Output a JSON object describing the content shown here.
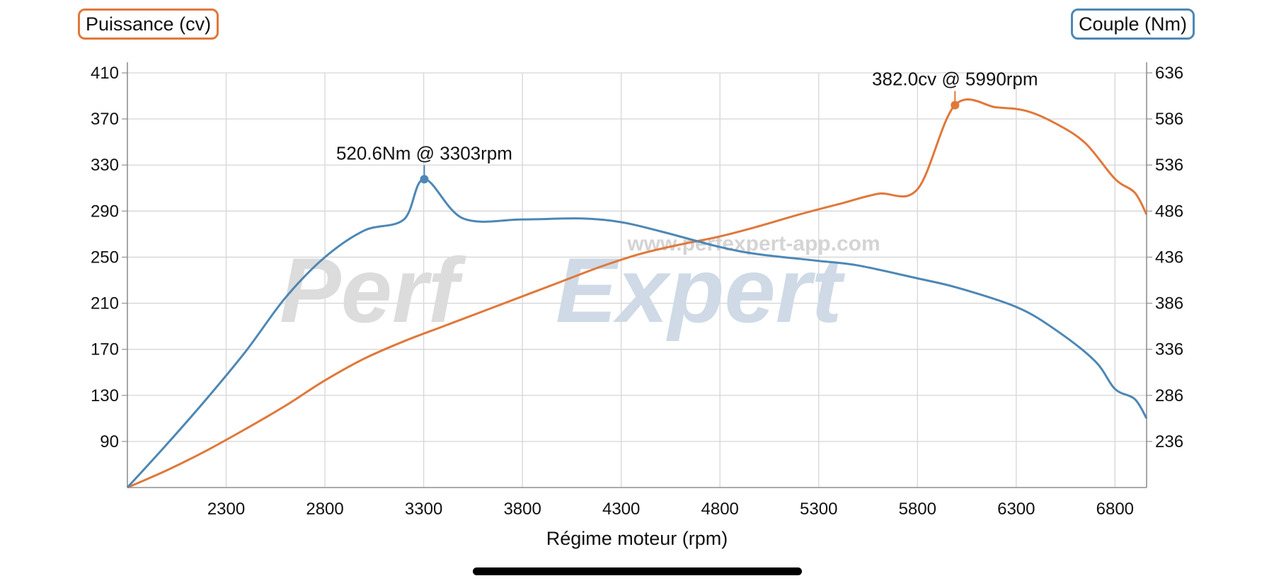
{
  "legend": {
    "left_label": "Puissance (cv)",
    "right_label": "Couple (Nm)"
  },
  "watermark": {
    "url": "www.perfexpert-app.com",
    "brand_part1": "Perf",
    "brand_part2": "Expert"
  },
  "chart_data": {
    "type": "line",
    "xlabel": "Régime moteur (rpm)",
    "x_ticks": [
      2300,
      2800,
      3300,
      3800,
      4300,
      4800,
      5300,
      5800,
      6300,
      6800
    ],
    "xlim": [
      1800,
      6960
    ],
    "y_left": {
      "label": "Puissance (cv)",
      "ticks": [
        90,
        130,
        170,
        210,
        250,
        290,
        330,
        370,
        410
      ],
      "range": [
        50,
        410
      ]
    },
    "y_right": {
      "label": "Couple (Nm)",
      "ticks": [
        236,
        286,
        336,
        386,
        436,
        486,
        536,
        586,
        636
      ],
      "range": [
        186,
        636
      ]
    },
    "grid": true,
    "series": [
      {
        "name": "Puissance (cv)",
        "axis": "left",
        "color": "#e0783a",
        "x": [
          1800,
          2000,
          2200,
          2400,
          2600,
          2800,
          3000,
          3200,
          3400,
          3600,
          3800,
          4000,
          4200,
          4400,
          4600,
          4800,
          5000,
          5200,
          5400,
          5600,
          5800,
          5990,
          6200,
          6350,
          6500,
          6650,
          6800,
          6900,
          6960
        ],
        "values": [
          50,
          65,
          82,
          101,
          121,
          143,
          162,
          177,
          190,
          203,
          216,
          229,
          242,
          253,
          261,
          268,
          277,
          287,
          296,
          305,
          309,
          382.0,
          380,
          377,
          366,
          349,
          318,
          306,
          287
        ]
      },
      {
        "name": "Couple (Nm)",
        "axis": "right",
        "color": "#4d87b5",
        "x": [
          1800,
          2000,
          2200,
          2400,
          2600,
          2800,
          3000,
          3200,
          3303,
          3500,
          3800,
          4100,
          4300,
          4500,
          4800,
          5000,
          5300,
          5500,
          5800,
          6000,
          6300,
          6500,
          6700,
          6800,
          6900,
          6960
        ],
        "values": [
          186,
          233,
          282,
          334,
          392,
          436,
          465,
          477,
          520.6,
          478,
          477,
          478,
          474,
          464,
          447,
          439,
          432,
          427,
          413,
          403,
          382,
          357,
          323,
          293,
          282,
          261
        ]
      }
    ],
    "annotations": [
      {
        "text": "520.6Nm @ 3303rpm",
        "series": "Couple (Nm)"
      },
      {
        "text": "382.0cv @ 5990rpm",
        "series": "Puissance (cv)"
      }
    ]
  }
}
